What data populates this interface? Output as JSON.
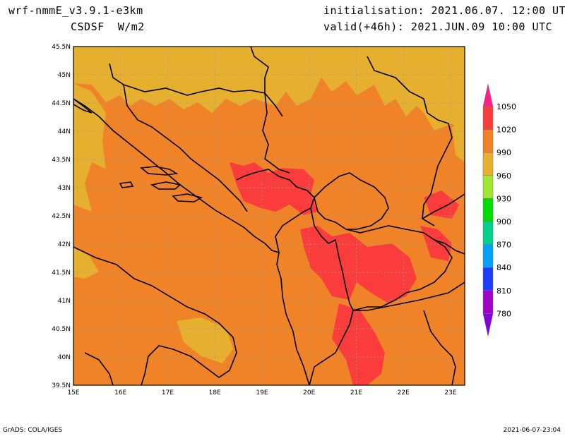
{
  "header": {
    "model": "wrf-nmmE_v3.9.1-e3km",
    "variable": "CSDSF  W/m2",
    "init": "initialisation: 2021.06.07. 12:00 UTC",
    "valid": "valid(+46h): 2021.JUN.09 10:00 UTC"
  },
  "footer": {
    "left": "GrADS: COLA/IGES",
    "right": "2021-06-07-23:04"
  },
  "map": {
    "lon_ticks": [
      "15E",
      "16E",
      "17E",
      "18E",
      "19E",
      "20E",
      "21E",
      "22E",
      "23E"
    ],
    "lat_ticks": [
      "39.5N",
      "40N",
      "40.5N",
      "41N",
      "41.5N",
      "42N",
      "42.5N",
      "43N",
      "43.5N",
      "44N",
      "44.5N",
      "45N",
      "45.5N"
    ],
    "lon_range": [
      15.0,
      23.3
    ],
    "lat_range": [
      39.5,
      45.5
    ]
  },
  "legend": {
    "levels": [
      "1050",
      "1020",
      "990",
      "960",
      "930",
      "900",
      "870",
      "840",
      "810",
      "780"
    ],
    "colors": [
      "#ff1e8c",
      "#fa3c3c",
      "#f08228",
      "#e6af2d",
      "#a0e632",
      "#00dc00",
      "#00d28c",
      "#00a0ff",
      "#1e3cff",
      "#a000c8",
      "#8200dc"
    ]
  }
}
